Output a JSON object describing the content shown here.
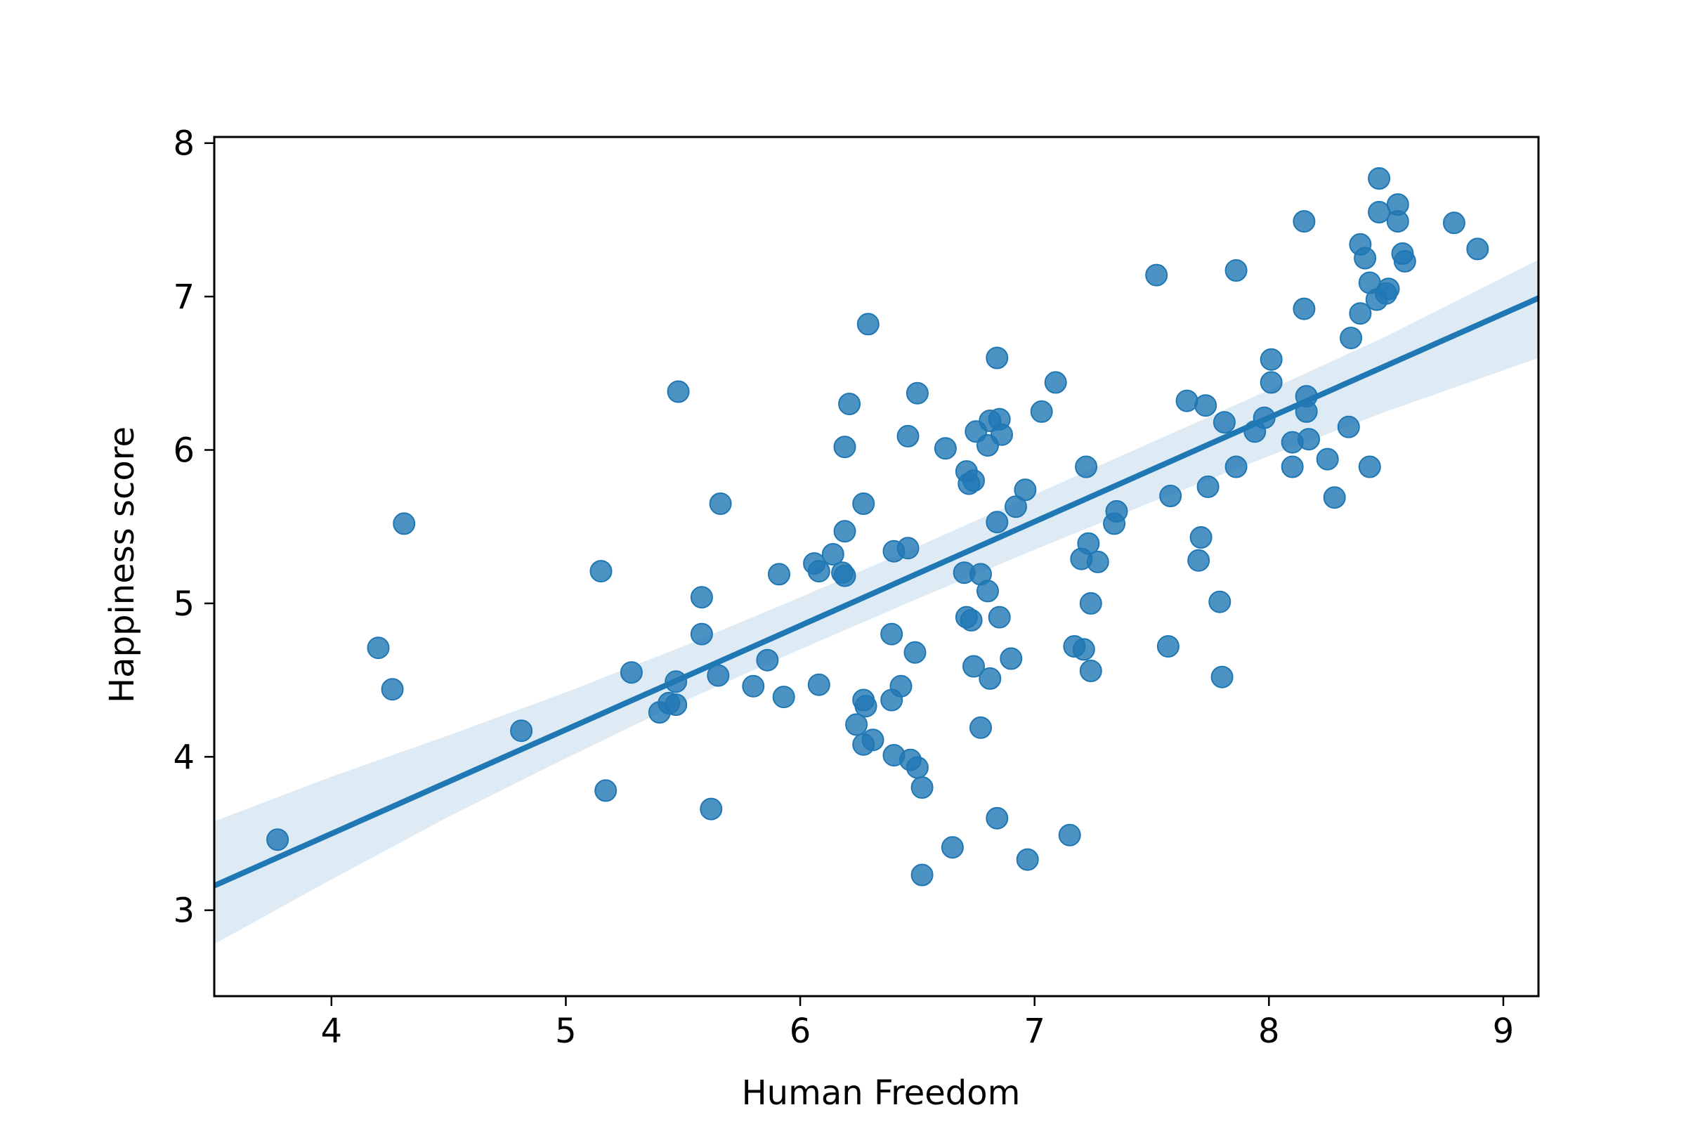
{
  "chart_data": {
    "type": "scatter",
    "title": "",
    "xlabel": "Human Freedom",
    "ylabel": "Happiness score",
    "xlim": [
      3.5,
      9.15
    ],
    "ylim": [
      2.44,
      8.04
    ],
    "x_ticks": [
      4,
      5,
      6,
      7,
      8,
      9
    ],
    "y_ticks": [
      3,
      4,
      5,
      6,
      7,
      8
    ],
    "grid": false,
    "legend": "none",
    "point_color": "#1f77b4",
    "point_opacity": 0.8,
    "band_color": "#1f77b4",
    "band_opacity": 0.15,
    "points": [
      [
        3.77,
        3.46
      ],
      [
        4.2,
        4.71
      ],
      [
        4.26,
        4.44
      ],
      [
        4.31,
        5.52
      ],
      [
        4.81,
        4.17
      ],
      [
        5.15,
        5.21
      ],
      [
        5.17,
        3.78
      ],
      [
        5.28,
        4.55
      ],
      [
        5.4,
        4.29
      ],
      [
        5.44,
        4.35
      ],
      [
        5.47,
        4.34
      ],
      [
        5.47,
        4.49
      ],
      [
        5.48,
        6.38
      ],
      [
        5.58,
        5.04
      ],
      [
        5.58,
        4.8
      ],
      [
        5.62,
        3.66
      ],
      [
        5.65,
        4.53
      ],
      [
        5.66,
        5.65
      ],
      [
        5.8,
        4.46
      ],
      [
        5.86,
        4.63
      ],
      [
        5.91,
        5.19
      ],
      [
        5.93,
        4.39
      ],
      [
        6.06,
        5.26
      ],
      [
        6.08,
        5.21
      ],
      [
        6.08,
        4.47
      ],
      [
        6.14,
        5.32
      ],
      [
        6.18,
        5.2
      ],
      [
        6.19,
        5.18
      ],
      [
        6.19,
        5.47
      ],
      [
        6.19,
        6.02
      ],
      [
        6.21,
        6.3
      ],
      [
        6.24,
        4.21
      ],
      [
        6.27,
        4.37
      ],
      [
        6.27,
        4.08
      ],
      [
        6.27,
        5.65
      ],
      [
        6.28,
        4.33
      ],
      [
        6.29,
        6.82
      ],
      [
        6.31,
        4.11
      ],
      [
        6.39,
        4.8
      ],
      [
        6.39,
        4.37
      ],
      [
        6.4,
        5.34
      ],
      [
        6.4,
        4.01
      ],
      [
        6.43,
        4.46
      ],
      [
        6.46,
        5.36
      ],
      [
        6.46,
        6.09
      ],
      [
        6.47,
        3.98
      ],
      [
        6.49,
        4.68
      ],
      [
        6.5,
        6.37
      ],
      [
        6.5,
        3.93
      ],
      [
        6.52,
        3.8
      ],
      [
        6.52,
        3.23
      ],
      [
        6.62,
        6.01
      ],
      [
        6.65,
        3.41
      ],
      [
        6.7,
        5.2
      ],
      [
        6.71,
        4.91
      ],
      [
        6.71,
        5.86
      ],
      [
        6.72,
        5.78
      ],
      [
        6.73,
        4.89
      ],
      [
        6.74,
        5.8
      ],
      [
        6.74,
        4.59
      ],
      [
        6.75,
        6.12
      ],
      [
        6.77,
        4.19
      ],
      [
        6.77,
        5.19
      ],
      [
        6.8,
        6.03
      ],
      [
        6.8,
        5.08
      ],
      [
        6.81,
        6.19
      ],
      [
        6.81,
        4.51
      ],
      [
        6.84,
        3.6
      ],
      [
        6.84,
        6.6
      ],
      [
        6.84,
        5.53
      ],
      [
        6.85,
        6.2
      ],
      [
        6.85,
        4.91
      ],
      [
        6.86,
        6.1
      ],
      [
        6.9,
        4.64
      ],
      [
        6.92,
        5.63
      ],
      [
        6.96,
        5.74
      ],
      [
        6.97,
        3.33
      ],
      [
        7.03,
        6.25
      ],
      [
        7.09,
        6.44
      ],
      [
        7.15,
        3.49
      ],
      [
        7.17,
        4.72
      ],
      [
        7.2,
        5.29
      ],
      [
        7.21,
        4.7
      ],
      [
        7.22,
        5.89
      ],
      [
        7.23,
        5.39
      ],
      [
        7.24,
        5.0
      ],
      [
        7.24,
        4.56
      ],
      [
        7.27,
        5.27
      ],
      [
        7.34,
        5.52
      ],
      [
        7.35,
        5.6
      ],
      [
        7.52,
        7.14
      ],
      [
        7.57,
        4.72
      ],
      [
        7.58,
        5.7
      ],
      [
        7.65,
        6.32
      ],
      [
        7.7,
        5.28
      ],
      [
        7.71,
        5.43
      ],
      [
        7.73,
        6.29
      ],
      [
        7.74,
        5.76
      ],
      [
        7.79,
        5.01
      ],
      [
        7.8,
        4.52
      ],
      [
        7.81,
        6.18
      ],
      [
        7.86,
        7.17
      ],
      [
        7.86,
        5.89
      ],
      [
        7.94,
        6.12
      ],
      [
        7.98,
        6.21
      ],
      [
        8.01,
        6.59
      ],
      [
        8.01,
        6.44
      ],
      [
        8.1,
        6.05
      ],
      [
        8.1,
        5.89
      ],
      [
        8.15,
        7.49
      ],
      [
        8.15,
        6.92
      ],
      [
        8.16,
        6.35
      ],
      [
        8.16,
        6.25
      ],
      [
        8.17,
        6.07
      ],
      [
        8.25,
        5.94
      ],
      [
        8.28,
        5.69
      ],
      [
        8.34,
        6.15
      ],
      [
        8.35,
        6.73
      ],
      [
        8.39,
        7.34
      ],
      [
        8.39,
        6.89
      ],
      [
        8.41,
        7.25
      ],
      [
        8.43,
        7.09
      ],
      [
        8.43,
        5.89
      ],
      [
        8.46,
        6.98
      ],
      [
        8.47,
        7.77
      ],
      [
        8.47,
        7.55
      ],
      [
        8.5,
        7.02
      ],
      [
        8.51,
        7.05
      ],
      [
        8.55,
        7.6
      ],
      [
        8.55,
        7.49
      ],
      [
        8.57,
        7.28
      ],
      [
        8.58,
        7.23
      ],
      [
        8.79,
        7.48
      ],
      [
        8.89,
        7.31
      ]
    ],
    "regression_line": {
      "x": [
        3.5,
        9.15
      ],
      "y": [
        3.16,
        6.99
      ]
    },
    "confidence_band": {
      "x": [
        3.5,
        4.0,
        4.5,
        5.0,
        5.5,
        6.0,
        6.5,
        7.0,
        7.5,
        8.0,
        8.5,
        9.15
      ],
      "lower": [
        2.78,
        3.2,
        3.61,
        3.99,
        4.36,
        4.7,
        5.03,
        5.35,
        5.66,
        5.96,
        6.25,
        6.6
      ],
      "upper": [
        3.58,
        3.87,
        4.14,
        4.42,
        4.72,
        5.04,
        5.37,
        5.71,
        6.05,
        6.39,
        6.74,
        7.24
      ]
    }
  }
}
